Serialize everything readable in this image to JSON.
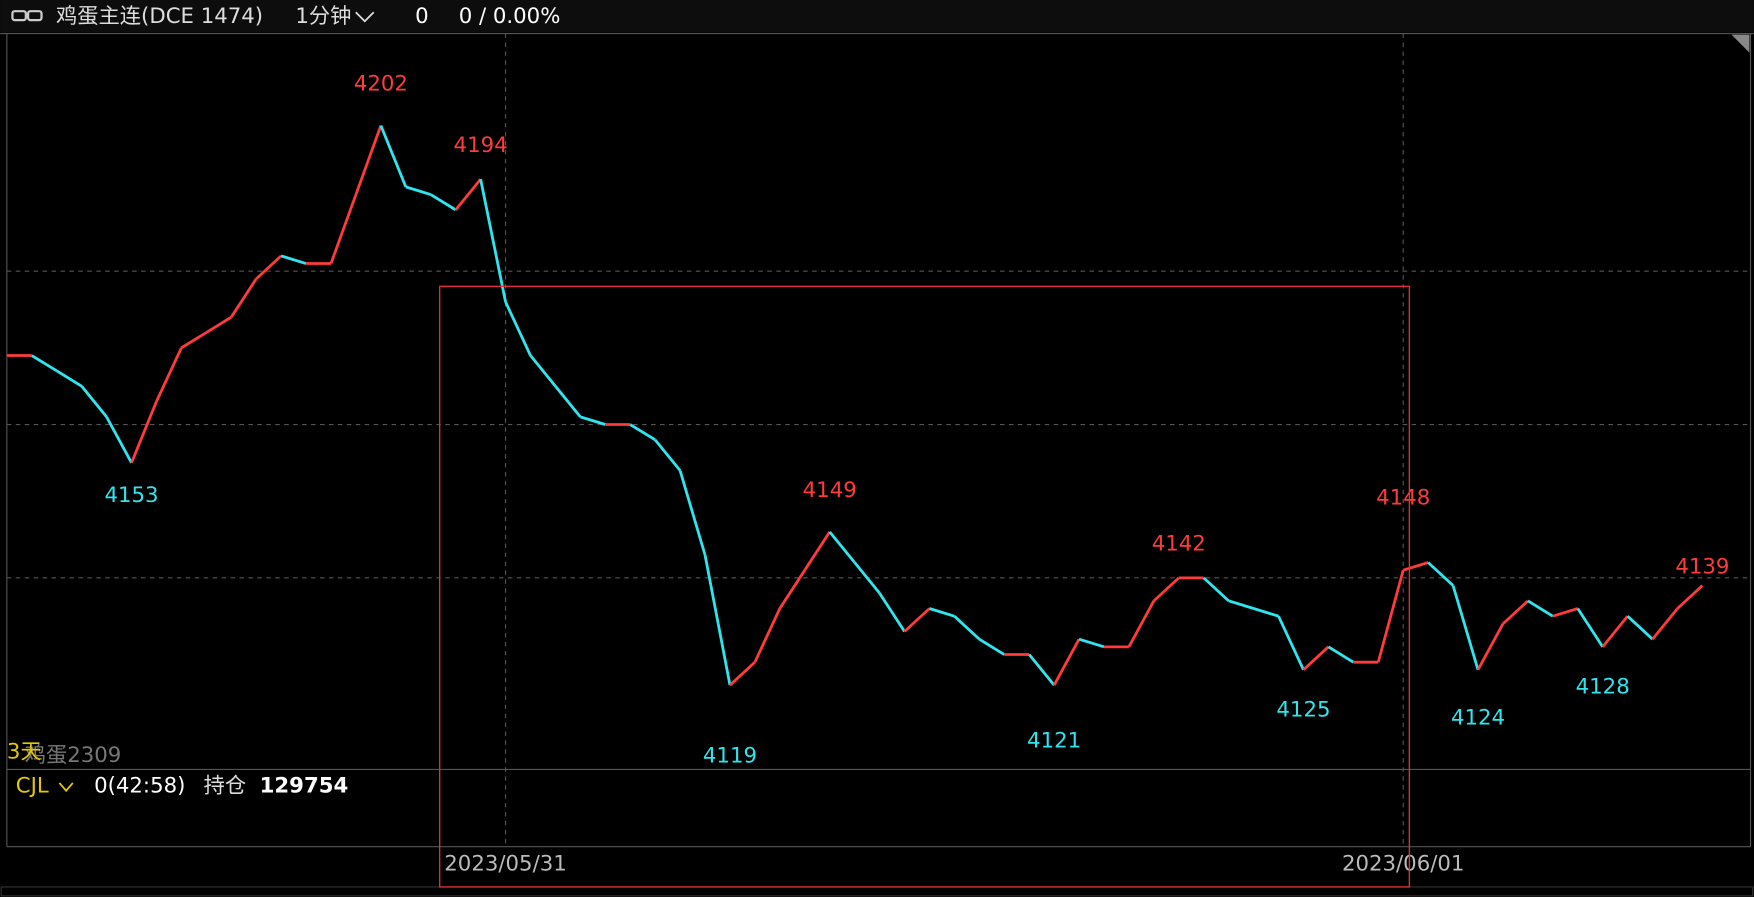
{
  "header": {
    "title": "鸡蛋主连(DCE 1474)",
    "period": "1分钟",
    "last": "0",
    "change": "0 / 0.00%"
  },
  "chart_data": {
    "type": "line",
    "values": [
      4169,
      4169,
      4167,
      4165,
      4161,
      4155,
      4163,
      4170,
      4172,
      4174,
      4179,
      4182,
      4181,
      4181,
      4190,
      4199,
      4191,
      4190,
      4188,
      4192,
      4176,
      4169,
      4165,
      4161,
      4160,
      4160,
      4158,
      4154,
      4143,
      4126,
      4129,
      4136,
      4141,
      4146,
      4142,
      4138,
      4133,
      4136,
      4135,
      4132,
      4130,
      4130,
      4126,
      4132,
      4131,
      4131,
      4137,
      4140,
      4140,
      4137,
      4136,
      4135,
      4128,
      4131,
      4129,
      4129,
      4141,
      4142,
      4139,
      4128,
      4134,
      4137,
      4135,
      4136,
      4131,
      4135,
      4132,
      4136,
      4139
    ],
    "up_color": "#ff3b3b",
    "down_color": "#2ee6ee",
    "ylim": [
      4115,
      4211
    ],
    "ygrid": [
      4140,
      4160,
      4180
    ],
    "xlim": [
      0,
      68
    ],
    "xticks": [
      {
        "value": 20,
        "label": "2023/05/31"
      },
      {
        "value": 56,
        "label": "2023/06/01"
      }
    ],
    "annotations": [
      {
        "x": 15,
        "value": 4202,
        "kind": "high"
      },
      {
        "x": 19,
        "value": 4194,
        "kind": "high"
      },
      {
        "x": 5,
        "value": 4153,
        "kind": "low"
      },
      {
        "x": 29,
        "value": 4119,
        "kind": "low"
      },
      {
        "x": 33,
        "value": 4149,
        "kind": "high"
      },
      {
        "x": 42,
        "value": 4121,
        "kind": "low"
      },
      {
        "x": 47,
        "value": 4142,
        "kind": "high"
      },
      {
        "x": 52,
        "value": 4125,
        "kind": "low"
      },
      {
        "x": 56,
        "value": 4148,
        "kind": "high"
      },
      {
        "x": 59,
        "value": 4124,
        "kind": "low"
      },
      {
        "x": 64,
        "value": 4128,
        "kind": "low"
      },
      {
        "x": 68,
        "value": 4139,
        "kind": "high"
      }
    ]
  },
  "overlay": {
    "span": "3天",
    "contract": "鸡蛋2309"
  },
  "volume_panel": {
    "indicator": "CJL",
    "reading": "0(42:58)",
    "oi_label": "持仓",
    "oi_value": 129754
  }
}
